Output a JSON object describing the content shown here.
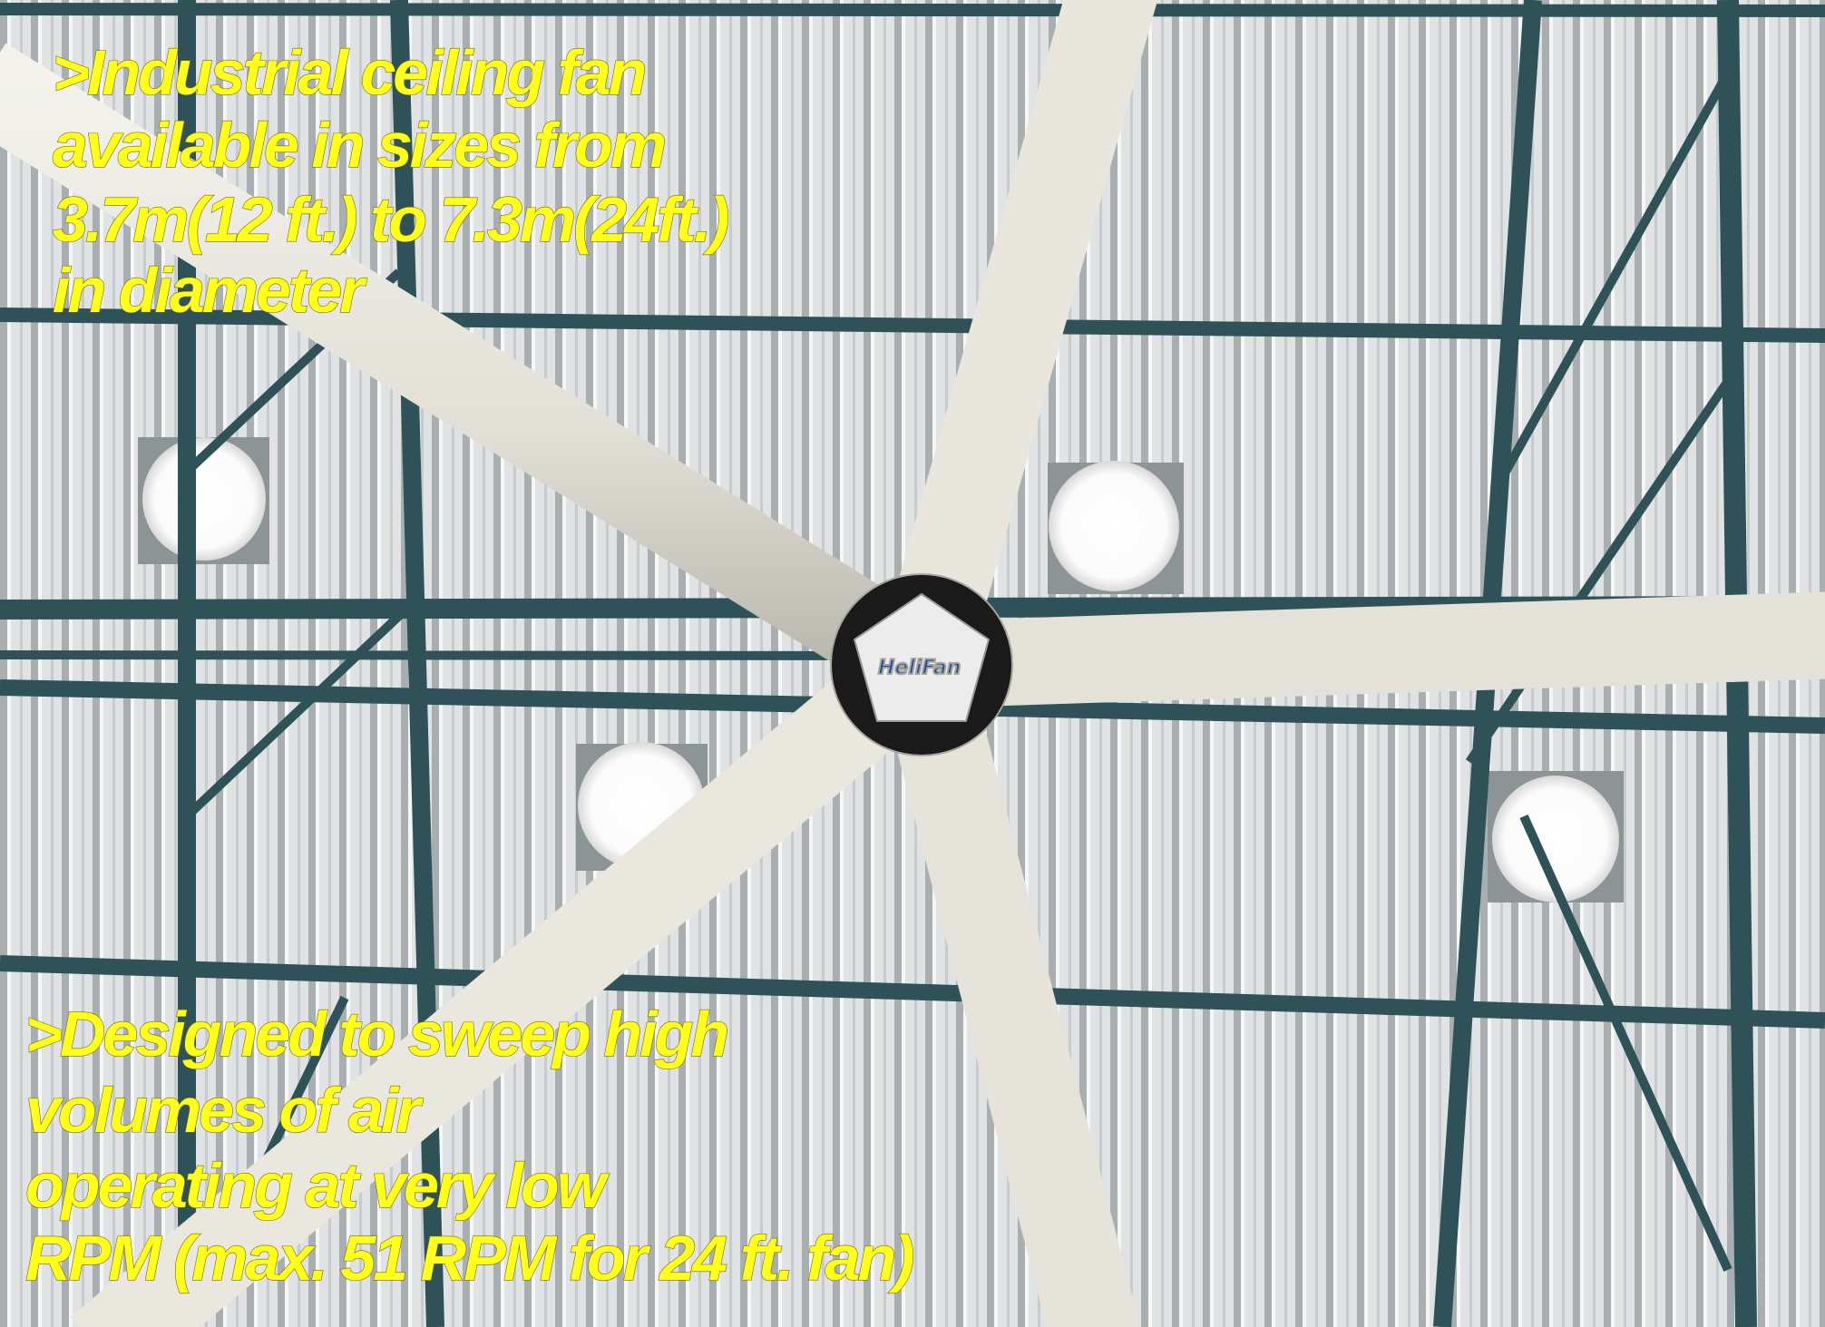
{
  "overlay_top": {
    "lines": [
      ">Industrial ceiling fan",
      "available in sizes from",
      "3.7m(12 ft.) to 7.3m(24ft.)",
      "in diameter"
    ]
  },
  "overlay_bottom": {
    "lines": [
      ">Designed to sweep high",
      "volumes of air",
      "operating at very low",
      "RPM (max. 51 RPM for 24 ft. fan)"
    ]
  },
  "logo": "HeliFan"
}
